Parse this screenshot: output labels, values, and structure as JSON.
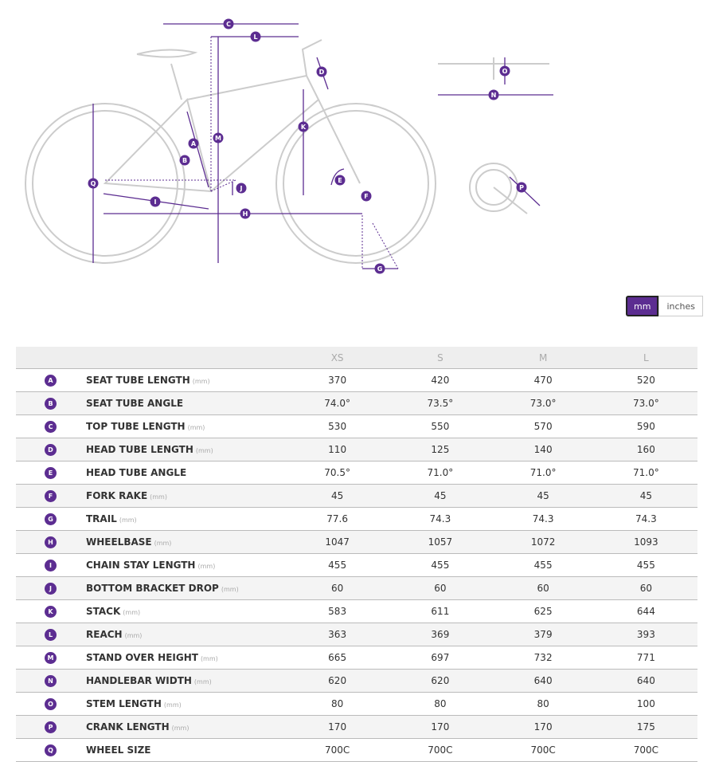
{
  "accent_color": "#5c2d91",
  "unit_toggle": {
    "mm": "mm",
    "inches": "inches",
    "selected": "mm"
  },
  "diagram_labels": [
    "A",
    "B",
    "C",
    "D",
    "E",
    "F",
    "G",
    "H",
    "I",
    "J",
    "K",
    "L",
    "M",
    "N",
    "O",
    "P",
    "Q"
  ],
  "table": {
    "sizes": [
      "XS",
      "S",
      "M",
      "L"
    ],
    "rows": [
      {
        "key": "A",
        "label": "SEAT TUBE LENGTH",
        "unit": "(mm)",
        "values": [
          "370",
          "420",
          "470",
          "520"
        ]
      },
      {
        "key": "B",
        "label": "SEAT TUBE ANGLE",
        "unit": "",
        "values": [
          "74.0°",
          "73.5°",
          "73.0°",
          "73.0°"
        ]
      },
      {
        "key": "C",
        "label": "TOP TUBE LENGTH",
        "unit": "(mm)",
        "values": [
          "530",
          "550",
          "570",
          "590"
        ]
      },
      {
        "key": "D",
        "label": "HEAD TUBE LENGTH",
        "unit": "(mm)",
        "values": [
          "110",
          "125",
          "140",
          "160"
        ]
      },
      {
        "key": "E",
        "label": "HEAD TUBE ANGLE",
        "unit": "",
        "values": [
          "70.5°",
          "71.0°",
          "71.0°",
          "71.0°"
        ]
      },
      {
        "key": "F",
        "label": "FORK RAKE",
        "unit": "(mm)",
        "values": [
          "45",
          "45",
          "45",
          "45"
        ]
      },
      {
        "key": "G",
        "label": "TRAIL",
        "unit": "(mm)",
        "values": [
          "77.6",
          "74.3",
          "74.3",
          "74.3"
        ]
      },
      {
        "key": "H",
        "label": "WHEELBASE",
        "unit": "(mm)",
        "values": [
          "1047",
          "1057",
          "1072",
          "1093"
        ]
      },
      {
        "key": "I",
        "label": "CHAIN STAY LENGTH",
        "unit": "(mm)",
        "values": [
          "455",
          "455",
          "455",
          "455"
        ]
      },
      {
        "key": "J",
        "label": "BOTTOM BRACKET DROP",
        "unit": "(mm)",
        "values": [
          "60",
          "60",
          "60",
          "60"
        ]
      },
      {
        "key": "K",
        "label": "STACK",
        "unit": "(mm)",
        "values": [
          "583",
          "611",
          "625",
          "644"
        ]
      },
      {
        "key": "L",
        "label": "REACH",
        "unit": "(mm)",
        "values": [
          "363",
          "369",
          "379",
          "393"
        ]
      },
      {
        "key": "M",
        "label": "STAND OVER HEIGHT",
        "unit": "(mm)",
        "values": [
          "665",
          "697",
          "732",
          "771"
        ]
      },
      {
        "key": "N",
        "label": "HANDLEBAR WIDTH",
        "unit": "(mm)",
        "values": [
          "620",
          "620",
          "640",
          "640"
        ]
      },
      {
        "key": "O",
        "label": "STEM LENGTH",
        "unit": "(mm)",
        "values": [
          "80",
          "80",
          "80",
          "100"
        ]
      },
      {
        "key": "P",
        "label": "CRANK LENGTH",
        "unit": "(mm)",
        "values": [
          "170",
          "170",
          "170",
          "175"
        ]
      },
      {
        "key": "Q",
        "label": "WHEEL SIZE",
        "unit": "",
        "values": [
          "700C",
          "700C",
          "700C",
          "700C"
        ]
      }
    ]
  }
}
